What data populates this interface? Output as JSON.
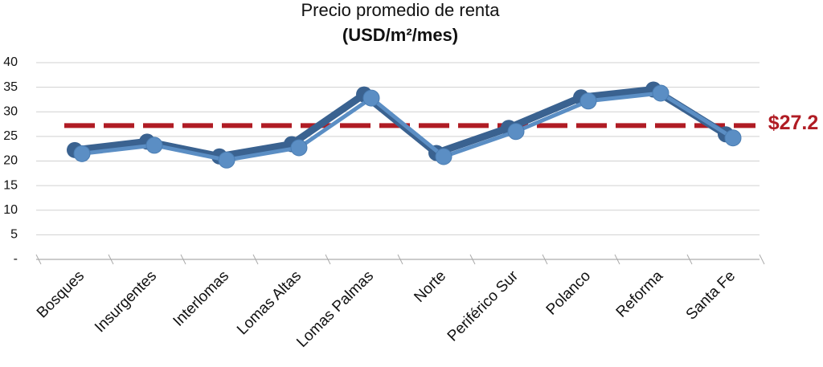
{
  "chart_data": {
    "type": "line",
    "title": "Precio promedio de renta",
    "subtitle": "(USD/m²/mes)",
    "categories": [
      "Bosques",
      "Insurgentes",
      "Interlomas",
      "Lomas Altas",
      "Lomas Palmas",
      "Norte",
      "Periférico Sur",
      "Polanco",
      "Reforma",
      "Santa Fe"
    ],
    "values": [
      21.5,
      23.2,
      20.2,
      22.7,
      32.8,
      20.9,
      26,
      32.2,
      33.8,
      24.7
    ],
    "color": "#5b8ec4",
    "ylim": [
      0,
      40
    ],
    "yticks": [
      {
        "value": 0,
        "label": "-"
      },
      5,
      10,
      15,
      20,
      25,
      30,
      35,
      40
    ],
    "grid": true,
    "reference": {
      "value": 27.2,
      "label": "$27.2",
      "color": "#b01c24"
    }
  }
}
